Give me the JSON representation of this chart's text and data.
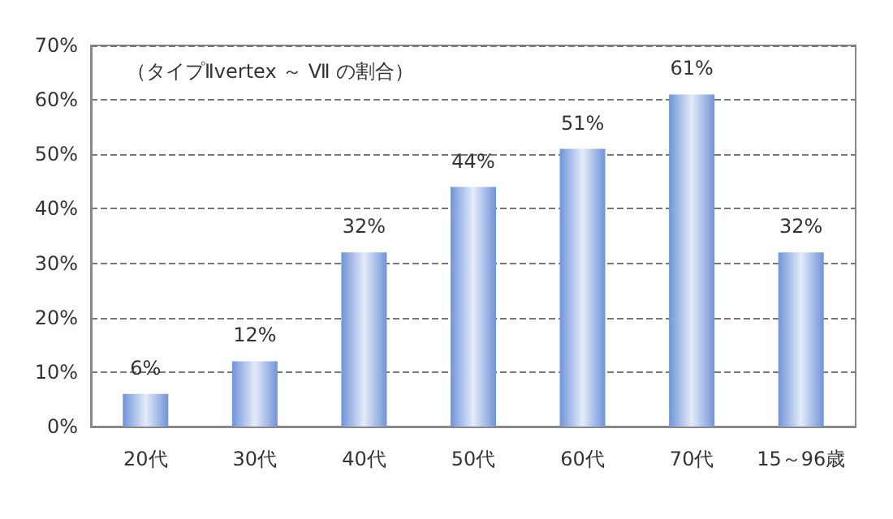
{
  "chart_data": {
    "type": "bar",
    "categories": [
      "20代",
      "30代",
      "40代",
      "50代",
      "60代",
      "70代",
      "15～96歳"
    ],
    "values": [
      6,
      12,
      32,
      44,
      51,
      61,
      32
    ],
    "value_labels": [
      "6%",
      "12%",
      "32%",
      "44%",
      "51%",
      "61%",
      "32%"
    ],
    "color": "#6f94d9",
    "ylim": [
      0,
      70
    ],
    "yticks": [
      {
        "value": 0,
        "label": "0%"
      },
      {
        "value": 10,
        "label": "10%"
      },
      {
        "value": 20,
        "label": "20%"
      },
      {
        "value": 30,
        "label": "30%"
      },
      {
        "value": 40,
        "label": "40%"
      },
      {
        "value": 50,
        "label": "50%"
      },
      {
        "value": 60,
        "label": "60%"
      },
      {
        "value": 70,
        "label": "70%"
      }
    ],
    "grid": "y",
    "annotations": [
      "（タイプⅡvertex ～ Ⅶ の割合）"
    ]
  }
}
